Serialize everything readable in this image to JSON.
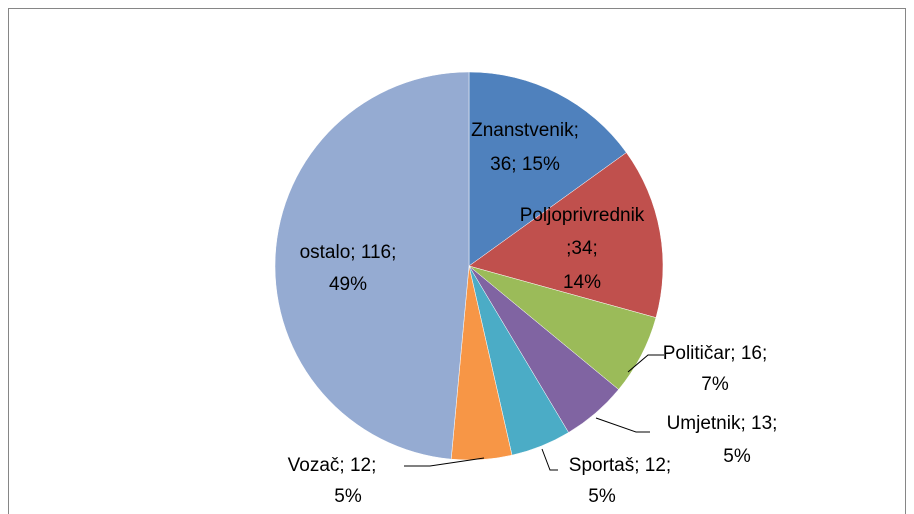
{
  "chart_data": {
    "type": "pie",
    "values": [
      36,
      34,
      16,
      13,
      12,
      12,
      116
    ],
    "colors": [
      "#4f81bd",
      "#c0504d",
      "#9bbb59",
      "#8064a2",
      "#4bacc6",
      "#f79646",
      "#95abd2"
    ],
    "value_labels": [
      [
        "Znanstvenik;",
        "36; 15%"
      ],
      [
        "Poljoprivrednik",
        ";34;",
        "14%"
      ],
      [
        "Političar; 16;",
        "7%"
      ],
      [
        "Umjetnik; 13;",
        "5%"
      ],
      [
        "Sportaš; 12;",
        "5%"
      ],
      [
        "Vozač; 12;",
        "5%"
      ],
      [
        "ostalo; 116;",
        "49%"
      ]
    ]
  }
}
